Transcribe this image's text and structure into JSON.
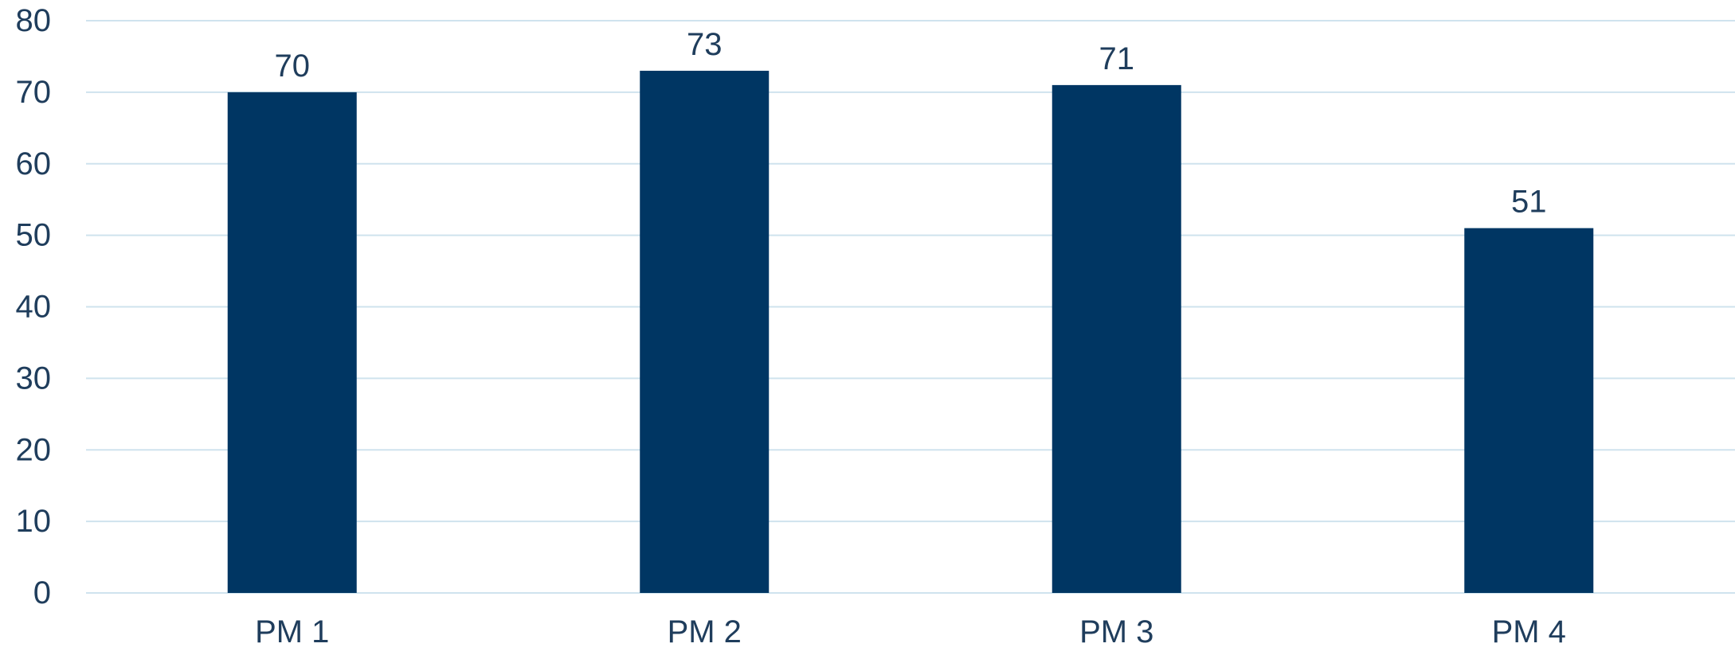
{
  "chart_data": {
    "type": "bar",
    "title": "",
    "xlabel": "",
    "ylabel": "",
    "categories": [
      "PM 1",
      "PM 2",
      "PM 3",
      "PM 4"
    ],
    "values": [
      70,
      73,
      71,
      51
    ],
    "data_labels": [
      "70",
      "73",
      "71",
      "51"
    ],
    "ylim": [
      0,
      80
    ],
    "yticks": [
      0,
      10,
      20,
      30,
      40,
      50,
      60,
      70,
      80
    ],
    "ytick_labels": [
      "0",
      "10",
      "20",
      "30",
      "40",
      "50",
      "60",
      "70",
      "80"
    ],
    "grid": true,
    "legend": "none"
  },
  "colors": {
    "bar": "#003663",
    "grid": "#cfe3ee",
    "text": "#1f3d5c",
    "background": "#ffffff"
  }
}
